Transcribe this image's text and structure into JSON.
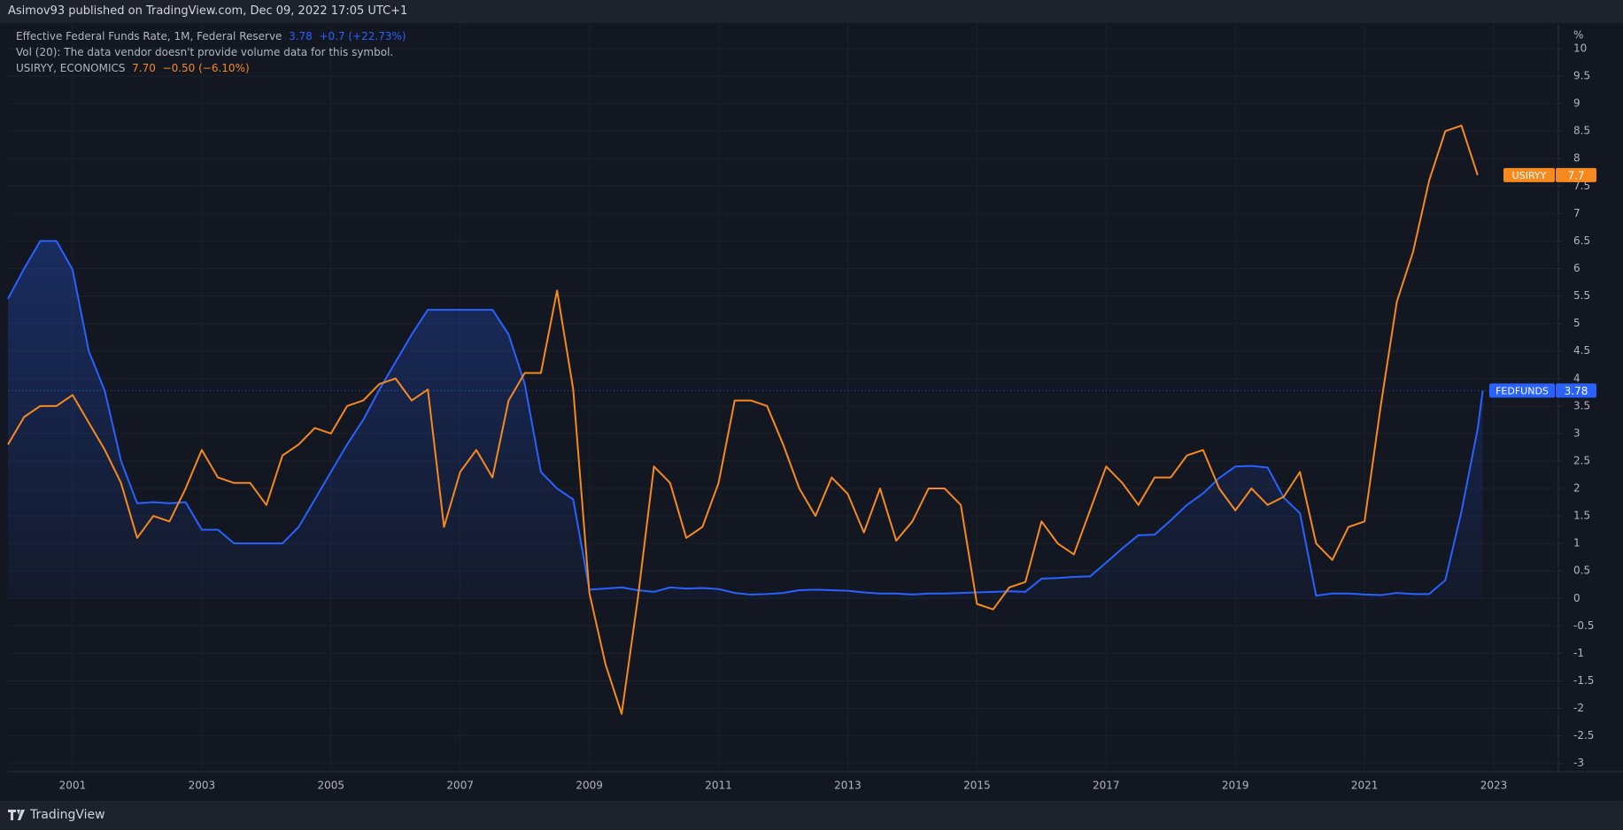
{
  "header_text": "Asimov93 published on TradingView.com, Dec 09, 2022 17:05 UTC+1",
  "footer_text": "TradingView",
  "chart_data": {
    "type": "line",
    "volume_note": "Vol (20): The data vendor doesn't provide volume data for this symbol.",
    "y_unit": "%",
    "grid": true,
    "x": [
      2000,
      2000.25,
      2000.5,
      2000.75,
      2001,
      2001.25,
      2001.5,
      2001.75,
      2002,
      2002.25,
      2002.5,
      2002.75,
      2003,
      2003.25,
      2003.5,
      2003.75,
      2004,
      2004.25,
      2004.5,
      2004.75,
      2005,
      2005.25,
      2005.5,
      2005.75,
      2006,
      2006.25,
      2006.5,
      2006.75,
      2007,
      2007.25,
      2007.5,
      2007.75,
      2008,
      2008.25,
      2008.5,
      2008.75,
      2009,
      2009.25,
      2009.5,
      2009.75,
      2010,
      2010.25,
      2010.5,
      2010.75,
      2011,
      2011.25,
      2011.5,
      2011.75,
      2012,
      2012.25,
      2012.5,
      2012.75,
      2013,
      2013.25,
      2013.5,
      2013.75,
      2014,
      2014.25,
      2014.5,
      2014.75,
      2015,
      2015.25,
      2015.5,
      2015.75,
      2016,
      2016.25,
      2016.5,
      2016.75,
      2017,
      2017.25,
      2017.5,
      2017.75,
      2018,
      2018.25,
      2018.5,
      2018.75,
      2019,
      2019.25,
      2019.5,
      2019.75,
      2020,
      2020.25,
      2020.5,
      2020.75,
      2021,
      2021.25,
      2021.5,
      2021.75,
      2022,
      2022.25,
      2022.5,
      2022.75,
      2022.83
    ],
    "series": [
      {
        "name": "FEDFUNDS",
        "title": "Effective Federal Funds Rate, 1M, Federal Reserve",
        "change": "+0.7 (+22.73%)",
        "color": "#2962ff",
        "area": true,
        "values": [
          5.45,
          6.0,
          6.5,
          6.5,
          5.98,
          4.5,
          3.77,
          2.5,
          1.73,
          1.75,
          1.73,
          1.75,
          1.25,
          1.25,
          1.0,
          1.0,
          1.0,
          1.0,
          1.3,
          1.8,
          2.3,
          2.8,
          3.25,
          3.8,
          4.3,
          4.8,
          5.25,
          5.25,
          5.25,
          5.25,
          5.25,
          4.8,
          3.9,
          2.3,
          2.0,
          1.8,
          0.16,
          0.18,
          0.2,
          0.15,
          0.12,
          0.2,
          0.18,
          0.19,
          0.17,
          0.1,
          0.07,
          0.08,
          0.1,
          0.15,
          0.16,
          0.15,
          0.14,
          0.11,
          0.09,
          0.09,
          0.07,
          0.09,
          0.09,
          0.1,
          0.11,
          0.12,
          0.13,
          0.12,
          0.36,
          0.37,
          0.39,
          0.4,
          0.65,
          0.91,
          1.15,
          1.16,
          1.42,
          1.7,
          1.91,
          2.19,
          2.4,
          2.41,
          2.38,
          1.83,
          1.55,
          0.05,
          0.09,
          0.09,
          0.07,
          0.06,
          0.1,
          0.08,
          0.08,
          0.33,
          1.58,
          3.08,
          3.78
        ]
      },
      {
        "name": "USIRYY",
        "title": "USIRYY, ECONOMICS",
        "last_label": "7.70",
        "change": "−0.50 (−6.10%)",
        "color": "#f68a1e",
        "area": false,
        "values": [
          2.8,
          3.3,
          3.5,
          3.5,
          3.7,
          3.2,
          2.7,
          2.1,
          1.1,
          1.5,
          1.4,
          2.0,
          2.7,
          2.2,
          2.1,
          2.1,
          1.7,
          2.6,
          2.8,
          3.1,
          3.0,
          3.5,
          3.6,
          3.9,
          4.0,
          3.6,
          3.8,
          1.3,
          2.3,
          2.7,
          2.2,
          3.6,
          4.1,
          4.1,
          5.6,
          3.8,
          0.1,
          -1.2,
          -2.1,
          0.0,
          2.4,
          2.1,
          1.1,
          1.3,
          2.1,
          3.6,
          3.6,
          3.5,
          2.8,
          2.0,
          1.5,
          2.2,
          1.9,
          1.2,
          2.0,
          1.05,
          1.4,
          2.0,
          2.0,
          1.7,
          -0.1,
          -0.2,
          0.2,
          0.3,
          1.4,
          1.0,
          0.8,
          1.6,
          2.4,
          2.1,
          1.7,
          2.2,
          2.2,
          2.6,
          2.7,
          2.0,
          1.6,
          2.0,
          1.7,
          1.85,
          2.3,
          1.0,
          0.7,
          1.3,
          1.4,
          3.5,
          5.4,
          6.3,
          7.6,
          8.5,
          8.6,
          7.7,
          null
        ]
      }
    ],
    "xlim": [
      2000,
      2024
    ],
    "xticks": [
      2001,
      2003,
      2005,
      2007,
      2009,
      2011,
      2013,
      2015,
      2017,
      2019,
      2021,
      2023
    ],
    "ylim": [
      -3.15,
      10.45
    ],
    "yticks": [
      10,
      9.5,
      9,
      8.5,
      8,
      7.5,
      7,
      6.5,
      6,
      5.5,
      5,
      4.5,
      4,
      3.5,
      3,
      2.5,
      2,
      1.5,
      1,
      0.5,
      0,
      -0.5,
      -1,
      -1.5,
      -2,
      -2.5,
      -3
    ]
  }
}
